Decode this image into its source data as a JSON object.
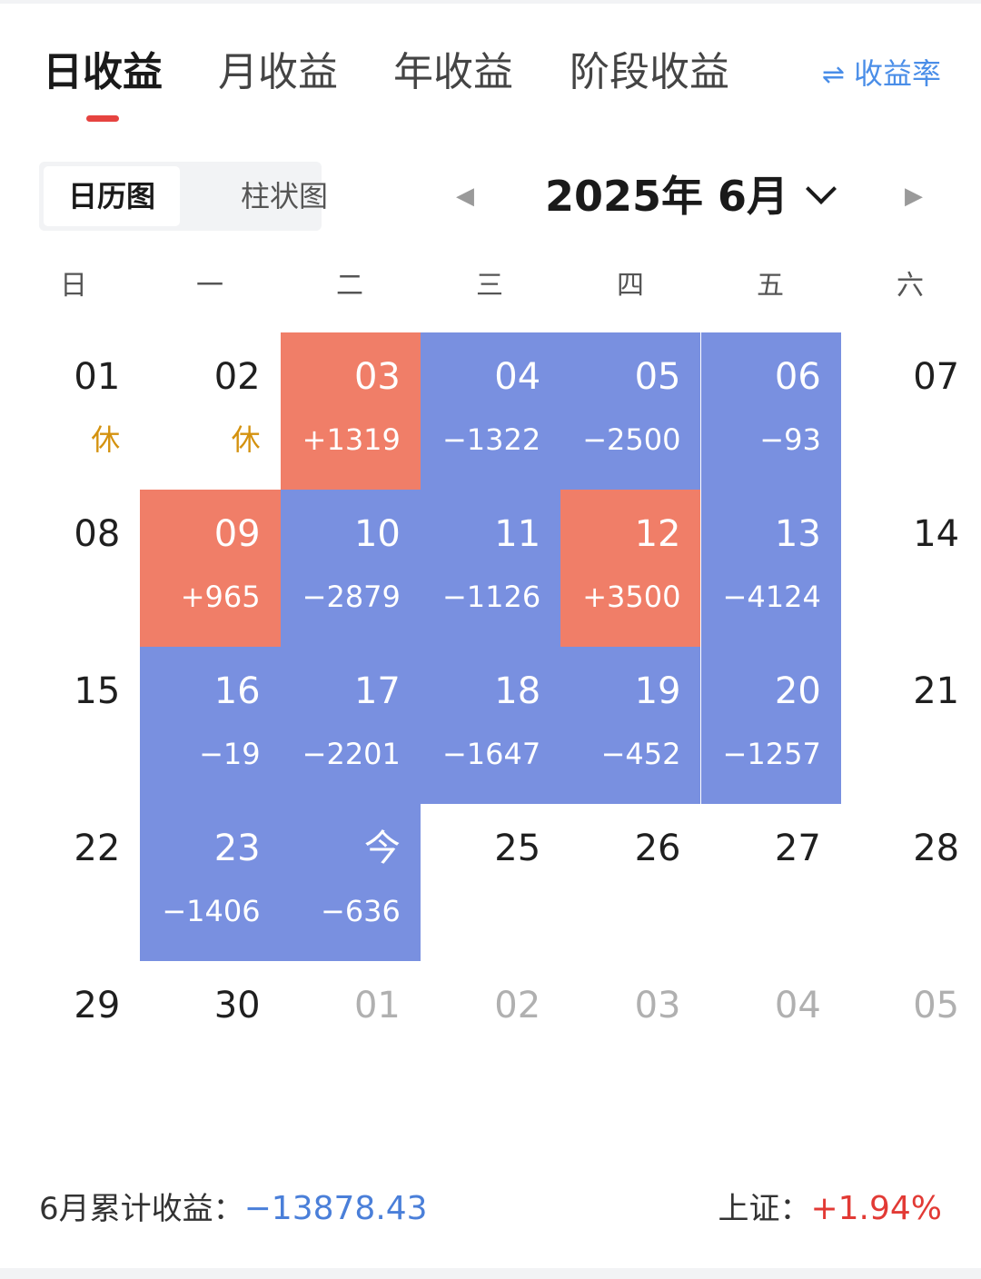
{
  "tabs": [
    {
      "label": "日收益",
      "active": true
    },
    {
      "label": "月收益",
      "active": false
    },
    {
      "label": "年收益",
      "active": false
    },
    {
      "label": "阶段收益",
      "active": false
    }
  ],
  "rate_switch": {
    "icon": "swap-arrows-icon",
    "symbol": "⇌",
    "label": "收益率"
  },
  "view_toggle": {
    "calendar": "日历图",
    "bar": "柱状图",
    "selected": "calendar"
  },
  "month_nav": {
    "title": "2025年 6月",
    "prev": "◀",
    "next": "▶"
  },
  "weekdays": [
    "日",
    "一",
    "二",
    "三",
    "四",
    "五",
    "六"
  ],
  "colors": {
    "loss": "#7990e0",
    "gain": "#f07e68",
    "rest": "#d4920f",
    "accent": "#e64340"
  },
  "days": [
    {
      "day": "01",
      "value": "休",
      "status": "rest"
    },
    {
      "day": "02",
      "value": "休",
      "status": "rest"
    },
    {
      "day": "03",
      "value": "+1319",
      "status": "gain"
    },
    {
      "day": "04",
      "value": "−1322",
      "status": "loss"
    },
    {
      "day": "05",
      "value": "−2500",
      "status": "loss"
    },
    {
      "day": "06",
      "value": "−93",
      "status": "loss"
    },
    {
      "day": "07",
      "value": "",
      "status": "none"
    },
    {
      "day": "08",
      "value": "",
      "status": "none"
    },
    {
      "day": "09",
      "value": "+965",
      "status": "gain"
    },
    {
      "day": "10",
      "value": "−2879",
      "status": "loss"
    },
    {
      "day": "11",
      "value": "−1126",
      "status": "loss"
    },
    {
      "day": "12",
      "value": "+3500",
      "status": "gain"
    },
    {
      "day": "13",
      "value": "−4124",
      "status": "loss"
    },
    {
      "day": "14",
      "value": "",
      "status": "none"
    },
    {
      "day": "15",
      "value": "",
      "status": "none"
    },
    {
      "day": "16",
      "value": "−19",
      "status": "loss"
    },
    {
      "day": "17",
      "value": "−2201",
      "status": "loss"
    },
    {
      "day": "18",
      "value": "−1647",
      "status": "loss"
    },
    {
      "day": "19",
      "value": "−452",
      "status": "loss"
    },
    {
      "day": "20",
      "value": "−1257",
      "status": "loss"
    },
    {
      "day": "21",
      "value": "",
      "status": "none"
    },
    {
      "day": "22",
      "value": "",
      "status": "none"
    },
    {
      "day": "23",
      "value": "−1406",
      "status": "loss"
    },
    {
      "day": "今",
      "value": "−636",
      "status": "loss"
    },
    {
      "day": "25",
      "value": "",
      "status": "none"
    },
    {
      "day": "26",
      "value": "",
      "status": "none"
    },
    {
      "day": "27",
      "value": "",
      "status": "none"
    },
    {
      "day": "28",
      "value": "",
      "status": "none"
    },
    {
      "day": "29",
      "value": "",
      "status": "none"
    },
    {
      "day": "30",
      "value": "",
      "status": "none"
    },
    {
      "day": "01",
      "value": "",
      "status": "other"
    },
    {
      "day": "02",
      "value": "",
      "status": "other"
    },
    {
      "day": "03",
      "value": "",
      "status": "other"
    },
    {
      "day": "04",
      "value": "",
      "status": "other"
    },
    {
      "day": "05",
      "value": "",
      "status": "other"
    }
  ],
  "summary": {
    "month_label": "6月累计收益：",
    "month_value": "−13878.43",
    "index_label": "上证：",
    "index_value": "+1.94%"
  }
}
